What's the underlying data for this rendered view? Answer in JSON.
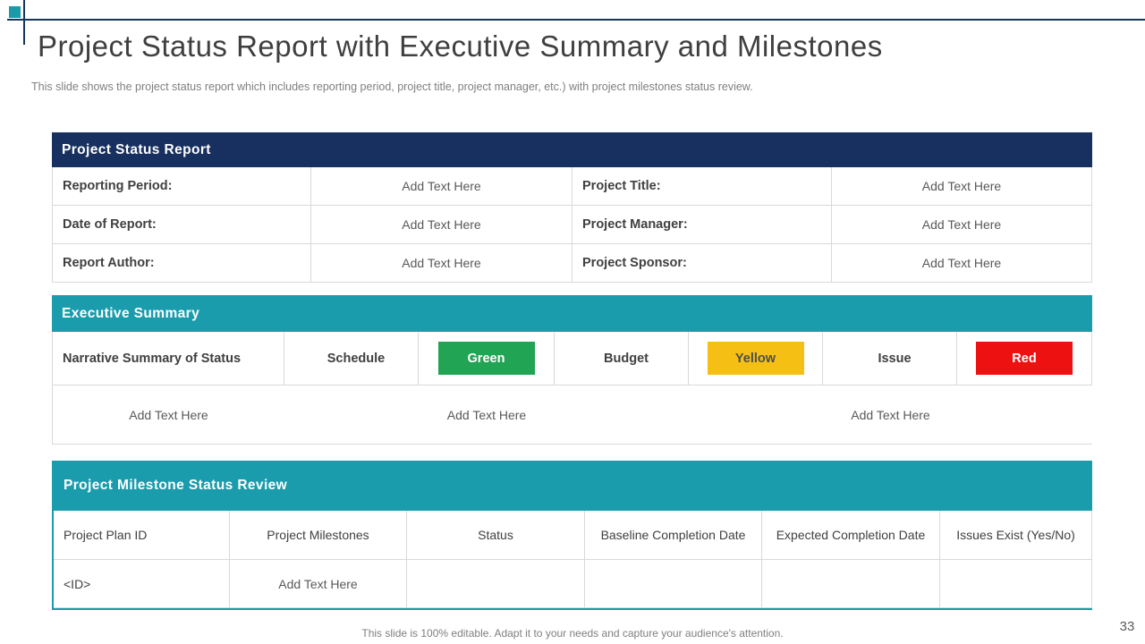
{
  "slide": {
    "title": "Project Status Report with Executive Summary and Milestones",
    "subtitle": "This slide shows the project status report which includes reporting period, project title, project manager, etc.) with project milestones status review.",
    "footer_note": "This slide is 100% editable.  Adapt it to your needs and capture your audience's attention.",
    "page_number": "33"
  },
  "colors": {
    "navy_header": "#17305f",
    "teal_accent": "#1b9cac",
    "status_green": "#22a455",
    "status_yellow": "#f5c013",
    "status_red": "#ee1111"
  },
  "status_report": {
    "header": "Project Status Report",
    "rows": [
      {
        "label1": "Reporting Period:",
        "value1": "Add Text Here",
        "label2": "Project Title:",
        "value2": "Add Text Here"
      },
      {
        "label1": "Date of Report:",
        "value1": "Add Text Here",
        "label2": "Project Manager:",
        "value2": "Add Text Here"
      },
      {
        "label1": "Report Author:",
        "value1": "Add Text Here",
        "label2": "Project Sponsor:",
        "value2": "Add Text Here"
      }
    ]
  },
  "executive_summary": {
    "header": "Executive Summary",
    "narrative_label": "Narrative Summary of Status",
    "statuses": [
      {
        "label": "Schedule",
        "value": "Green"
      },
      {
        "label": "Budget",
        "value": "Yellow"
      },
      {
        "label": "Issue",
        "value": "Red"
      }
    ],
    "placeholders": [
      "Add Text Here",
      "Add Text Here",
      "Add Text Here"
    ]
  },
  "milestone_review": {
    "header": "Project Milestone Status Review",
    "columns": [
      "Project Plan ID",
      "Project Milestones",
      "Status",
      "Baseline Completion Date",
      "Expected Completion Date",
      "Issues Exist (Yes/No)"
    ],
    "row": [
      "<ID>",
      "Add Text Here",
      "",
      "",
      "",
      ""
    ]
  }
}
